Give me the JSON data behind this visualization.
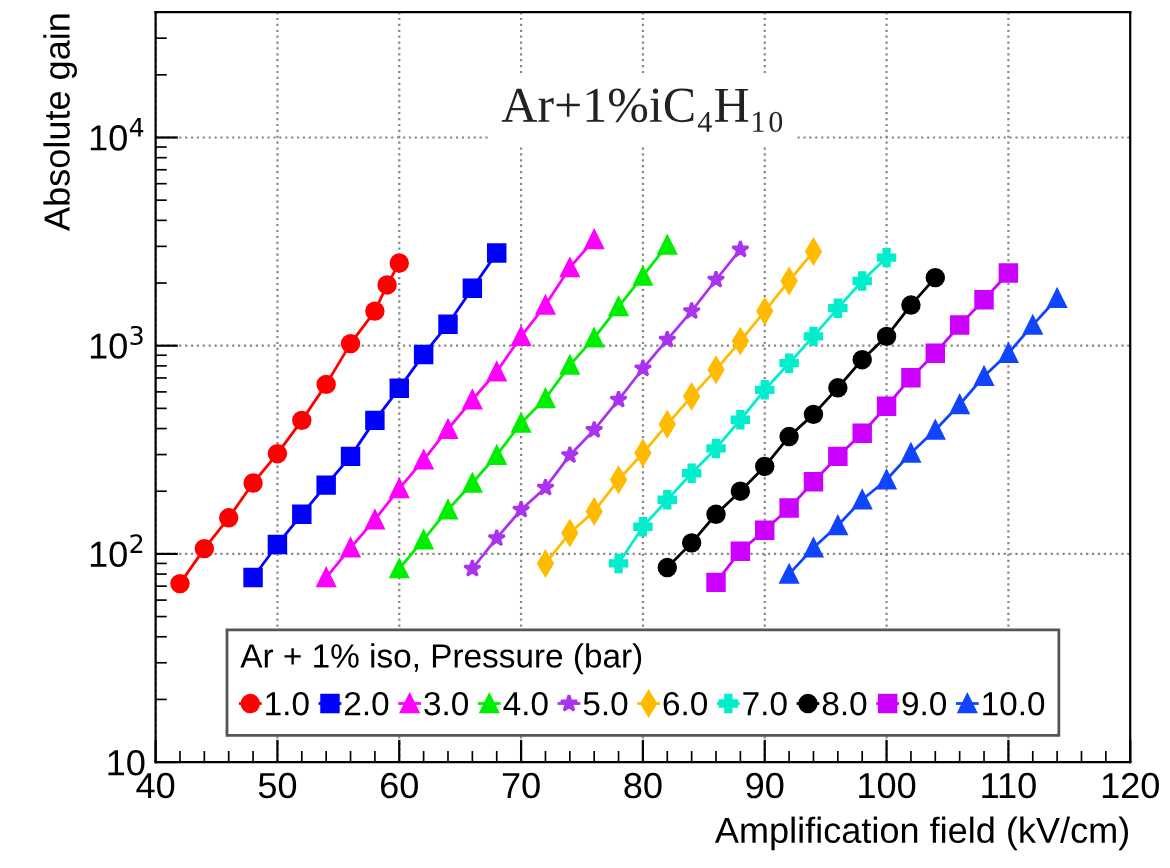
{
  "chart_data": {
    "type": "line",
    "title": "Ar+1%iC₄H₁₀",
    "xlabel": "Amplification field (kV/cm)",
    "ylabel": "Absolute gain",
    "legend_title": "Ar + 1% iso, Pressure (bar)",
    "legend": "bottom",
    "grid": true,
    "log": "y",
    "line_style": "solid",
    "xlim": [
      40,
      120
    ],
    "xticks": [
      40,
      50,
      60,
      70,
      80,
      90,
      100,
      110,
      120
    ],
    "ylim": [
      10,
      40000
    ],
    "yticks": [
      10,
      {
        "value": 100,
        "label": "10$^{2}$"
      },
      {
        "value": 1000,
        "label": "10$^{3}$"
      },
      {
        "value": 10000,
        "label": "10$^{4}$"
      }
    ],
    "series": [
      {
        "name": "1.0",
        "color": "#ff0000",
        "marker": "circle",
        "x": [
          42,
          44,
          46,
          48,
          50,
          52,
          54,
          56,
          58,
          59,
          60
        ],
        "values": [
          72,
          106,
          149,
          219,
          303,
          438,
          652,
          1023,
          1466,
          1958,
          2495
        ]
      },
      {
        "name": "2.0",
        "color": "#0000ff",
        "marker": "square",
        "x": [
          48,
          50,
          52,
          54,
          56,
          58,
          60,
          62,
          64,
          66,
          68
        ],
        "values": [
          77,
          111,
          155,
          214,
          294,
          438,
          624,
          908,
          1268,
          1888,
          2786
        ]
      },
      {
        "name": "3.0",
        "color": "#ff00ff",
        "marker": "triangle",
        "x": [
          54,
          56,
          58,
          60,
          62,
          64,
          66,
          68,
          70,
          72,
          74,
          76
        ],
        "values": [
          77,
          107,
          146,
          206,
          283,
          397,
          550,
          750,
          1109,
          1567,
          2371,
          3236
        ]
      },
      {
        "name": "4.0",
        "color": "#00ee00",
        "marker": "triangle",
        "x": [
          60,
          62,
          64,
          66,
          68,
          70,
          72,
          74,
          76,
          78,
          80,
          82
        ],
        "values": [
          85,
          117,
          163,
          219,
          298,
          425,
          558,
          807,
          1091,
          1542,
          2158,
          3048
        ]
      },
      {
        "name": "5.0",
        "color": "#aa33ee",
        "marker": "star",
        "x": [
          66,
          68,
          70,
          72,
          74,
          76,
          78,
          80,
          82,
          84,
          86,
          88
        ],
        "values": [
          85,
          119,
          163,
          208,
          298,
          394,
          550,
          777,
          1069,
          1466,
          2074,
          2897
        ]
      },
      {
        "name": "6.0",
        "color": "#ffbb00",
        "marker": "diamond",
        "x": [
          72,
          74,
          76,
          78,
          80,
          82,
          84,
          86,
          88,
          90,
          92,
          94
        ],
        "values": [
          90,
          126,
          160,
          227,
          305,
          419,
          571,
          767,
          1052,
          1466,
          2046,
          2832
        ]
      },
      {
        "name": "7.0",
        "color": "#00eecc",
        "marker": "cross",
        "x": [
          78,
          80,
          82,
          84,
          86,
          88,
          90,
          92,
          94,
          96,
          98,
          100
        ],
        "values": [
          90,
          135,
          182,
          244,
          321,
          441,
          614,
          824,
          1109,
          1514,
          2046,
          2649
        ]
      },
      {
        "name": "8.0",
        "color": "#000000",
        "marker": "circle",
        "x": [
          82,
          84,
          86,
          88,
          90,
          92,
          94,
          96,
          98,
          100,
          102,
          104
        ],
        "values": [
          86,
          113,
          155,
          200,
          263,
          366,
          468,
          628,
          857,
          1109,
          1567,
          2123
        ]
      },
      {
        "name": "9.0",
        "color": "#cc00ff",
        "marker": "square",
        "x": [
          86,
          88,
          90,
          92,
          94,
          96,
          98,
          100,
          102,
          104,
          106,
          108,
          110
        ],
        "values": [
          73,
          103,
          130,
          166,
          222,
          294,
          380,
          512,
          702,
          920,
          1256,
          1663,
          2235
        ]
      },
      {
        "name": "10.0",
        "color": "#1144ff",
        "marker": "triangle",
        "x": [
          92,
          94,
          96,
          98,
          100,
          102,
          104,
          106,
          108,
          110,
          112,
          114
        ],
        "values": [
          80,
          107,
          137,
          182,
          227,
          305,
          394,
          522,
          713,
          920,
          1256,
          1690
        ]
      }
    ]
  }
}
